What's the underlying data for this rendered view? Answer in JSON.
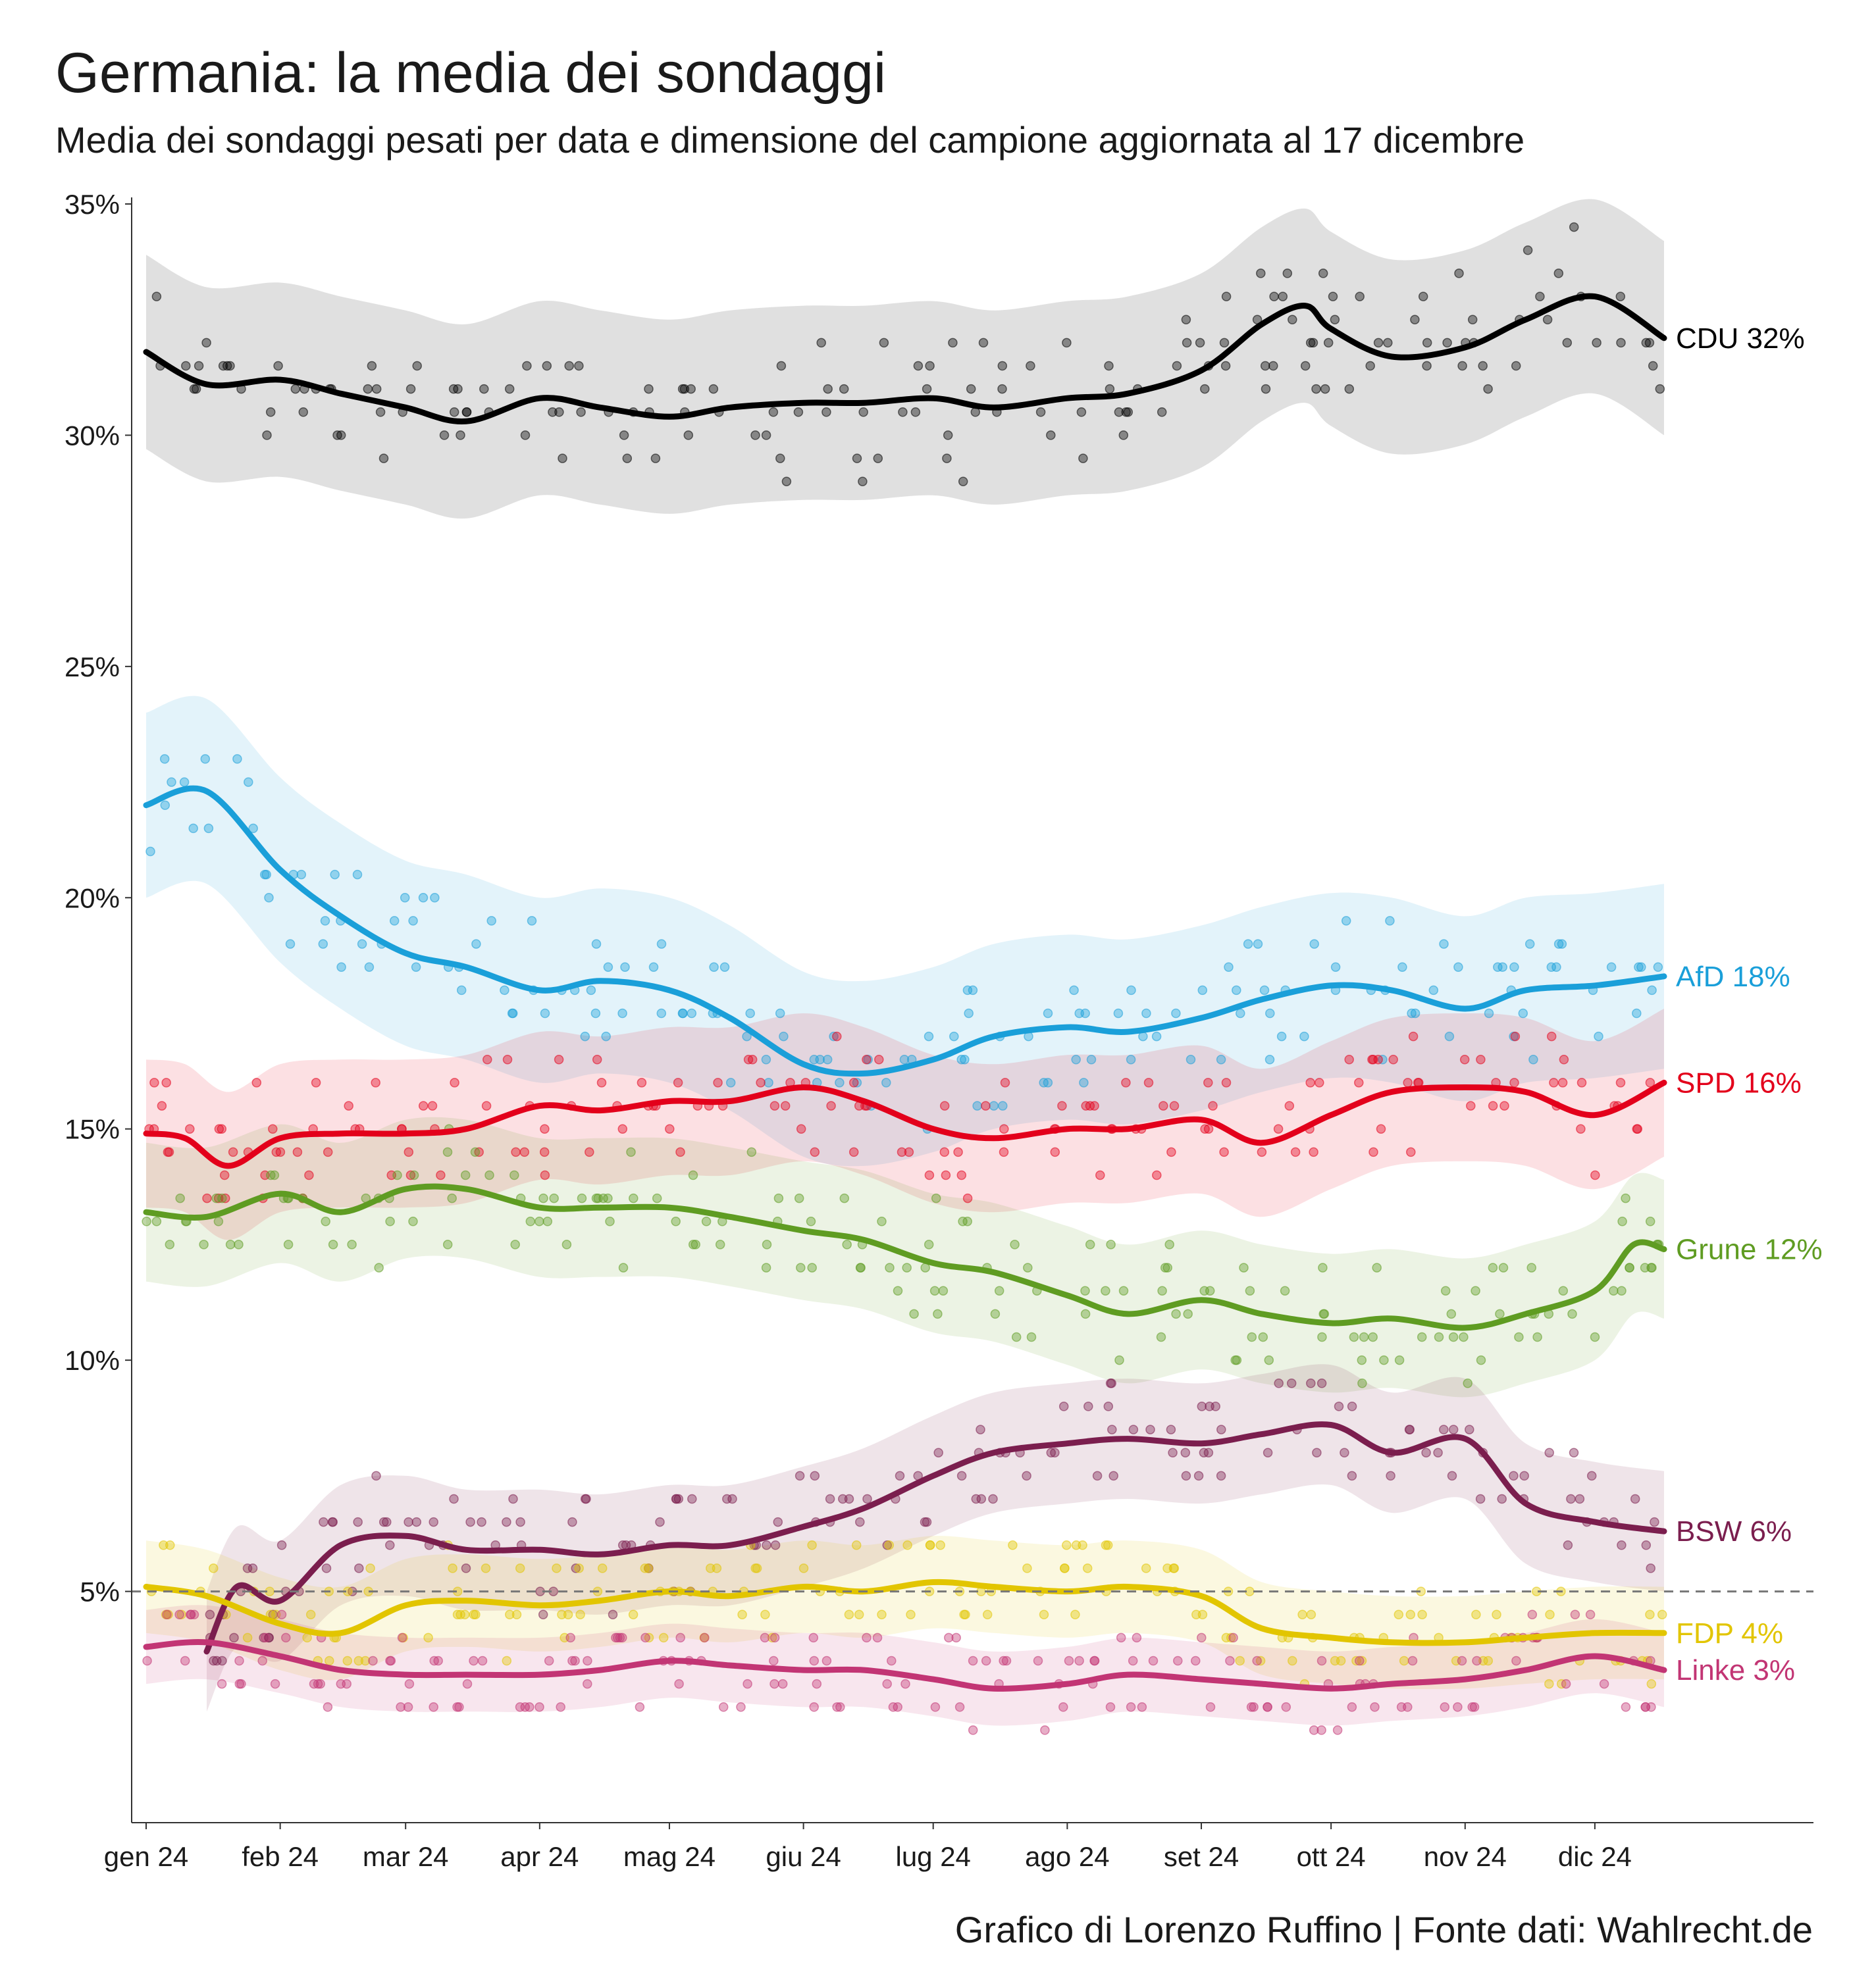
{
  "title": "Germania: la media dei sondaggi",
  "subtitle": "Media dei sondaggi pesati per data e dimensione del campione aggiornata al 17 dicembre",
  "credit": "Grafico di Lorenzo Ruffino | Fonte dati: Wahlrecht.de",
  "chart_data": {
    "type": "line",
    "x_unit": "month",
    "x_range": [
      "2024-01-01",
      "2024-12-31"
    ],
    "ylim": [
      0,
      35
    ],
    "ytick_values": [
      5,
      10,
      15,
      20,
      25,
      30,
      35
    ],
    "ytick_labels": [
      "5%",
      "10%",
      "15%",
      "20%",
      "25%",
      "30%",
      "35%"
    ],
    "xtick_dates": [
      "2024-01-01",
      "2024-02-01",
      "2024-03-01",
      "2024-04-01",
      "2024-05-01",
      "2024-06-01",
      "2024-07-01",
      "2024-08-01",
      "2024-09-01",
      "2024-10-01",
      "2024-11-01",
      "2024-12-01"
    ],
    "xtick_labels": [
      "gen 24",
      "feb 24",
      "mar 24",
      "apr 24",
      "mag 24",
      "giu 24",
      "lug 24",
      "ago 24",
      "set 24",
      "ott 24",
      "nov 24",
      "dic 24"
    ],
    "reference_line": 5,
    "grid": false,
    "series": [
      {
        "name": "CDU",
        "label": "CDU 32%",
        "color": "#000000",
        "band": 2.1,
        "points": [
          [
            "2024-01-01",
            31.8
          ],
          [
            "2024-01-15",
            31.1
          ],
          [
            "2024-02-01",
            31.2
          ],
          [
            "2024-02-15",
            30.9
          ],
          [
            "2024-03-01",
            30.6
          ],
          [
            "2024-03-15",
            30.3
          ],
          [
            "2024-04-01",
            30.8
          ],
          [
            "2024-04-15",
            30.6
          ],
          [
            "2024-05-01",
            30.4
          ],
          [
            "2024-05-15",
            30.6
          ],
          [
            "2024-06-01",
            30.7
          ],
          [
            "2024-06-15",
            30.7
          ],
          [
            "2024-07-01",
            30.8
          ],
          [
            "2024-07-15",
            30.6
          ],
          [
            "2024-08-01",
            30.8
          ],
          [
            "2024-08-15",
            30.9
          ],
          [
            "2024-09-01",
            31.4
          ],
          [
            "2024-09-15",
            32.4
          ],
          [
            "2024-09-25",
            32.8
          ],
          [
            "2024-10-01",
            32.3
          ],
          [
            "2024-10-15",
            31.7
          ],
          [
            "2024-11-01",
            31.9
          ],
          [
            "2024-11-15",
            32.5
          ],
          [
            "2024-12-01",
            33.0
          ],
          [
            "2024-12-17",
            32.1
          ]
        ]
      },
      {
        "name": "AfD",
        "label": "AfD 18%",
        "color": "#1a9fd9",
        "band": 2.0,
        "points": [
          [
            "2024-01-01",
            22.0
          ],
          [
            "2024-01-15",
            22.3
          ],
          [
            "2024-02-01",
            20.6
          ],
          [
            "2024-02-15",
            19.6
          ],
          [
            "2024-03-01",
            18.8
          ],
          [
            "2024-03-15",
            18.5
          ],
          [
            "2024-04-01",
            18.0
          ],
          [
            "2024-04-15",
            18.2
          ],
          [
            "2024-05-01",
            18.0
          ],
          [
            "2024-05-15",
            17.4
          ],
          [
            "2024-06-01",
            16.4
          ],
          [
            "2024-06-15",
            16.2
          ],
          [
            "2024-07-01",
            16.5
          ],
          [
            "2024-07-15",
            17.0
          ],
          [
            "2024-08-01",
            17.2
          ],
          [
            "2024-08-15",
            17.1
          ],
          [
            "2024-09-01",
            17.4
          ],
          [
            "2024-09-15",
            17.8
          ],
          [
            "2024-10-01",
            18.1
          ],
          [
            "2024-10-15",
            18.0
          ],
          [
            "2024-11-01",
            17.6
          ],
          [
            "2024-11-15",
            18.0
          ],
          [
            "2024-12-01",
            18.1
          ],
          [
            "2024-12-17",
            18.3
          ]
        ]
      },
      {
        "name": "SPD",
        "label": "SPD 16%",
        "color": "#e3001b",
        "band": 1.6,
        "points": [
          [
            "2024-01-01",
            14.9
          ],
          [
            "2024-01-10",
            14.8
          ],
          [
            "2024-01-20",
            14.2
          ],
          [
            "2024-02-01",
            14.8
          ],
          [
            "2024-02-15",
            14.9
          ],
          [
            "2024-03-01",
            14.9
          ],
          [
            "2024-03-15",
            15.0
          ],
          [
            "2024-04-01",
            15.5
          ],
          [
            "2024-04-15",
            15.4
          ],
          [
            "2024-05-01",
            15.6
          ],
          [
            "2024-05-15",
            15.6
          ],
          [
            "2024-06-01",
            15.9
          ],
          [
            "2024-06-15",
            15.6
          ],
          [
            "2024-07-01",
            15.0
          ],
          [
            "2024-07-15",
            14.8
          ],
          [
            "2024-08-01",
            15.0
          ],
          [
            "2024-08-15",
            15.0
          ],
          [
            "2024-09-01",
            15.2
          ],
          [
            "2024-09-15",
            14.7
          ],
          [
            "2024-10-01",
            15.3
          ],
          [
            "2024-10-15",
            15.8
          ],
          [
            "2024-11-01",
            15.9
          ],
          [
            "2024-11-15",
            15.8
          ],
          [
            "2024-12-01",
            15.3
          ],
          [
            "2024-12-17",
            16.0
          ]
        ]
      },
      {
        "name": "Grune",
        "label": "Grune 12%",
        "color": "#5f9c22",
        "band": 1.5,
        "points": [
          [
            "2024-01-01",
            13.2
          ],
          [
            "2024-01-15",
            13.1
          ],
          [
            "2024-02-01",
            13.6
          ],
          [
            "2024-02-15",
            13.2
          ],
          [
            "2024-03-01",
            13.7
          ],
          [
            "2024-03-15",
            13.7
          ],
          [
            "2024-04-01",
            13.3
          ],
          [
            "2024-04-15",
            13.3
          ],
          [
            "2024-05-01",
            13.3
          ],
          [
            "2024-05-15",
            13.1
          ],
          [
            "2024-06-01",
            12.8
          ],
          [
            "2024-06-15",
            12.6
          ],
          [
            "2024-07-01",
            12.1
          ],
          [
            "2024-07-15",
            11.9
          ],
          [
            "2024-08-01",
            11.4
          ],
          [
            "2024-08-15",
            11.0
          ],
          [
            "2024-09-01",
            11.3
          ],
          [
            "2024-09-15",
            11.0
          ],
          [
            "2024-10-01",
            10.8
          ],
          [
            "2024-10-15",
            10.9
          ],
          [
            "2024-11-01",
            10.7
          ],
          [
            "2024-11-15",
            11.0
          ],
          [
            "2024-12-01",
            11.5
          ],
          [
            "2024-12-10",
            12.5
          ],
          [
            "2024-12-17",
            12.4
          ]
        ]
      },
      {
        "name": "BSW",
        "label": "BSW 6%",
        "color": "#7b1e4e",
        "band": 1.3,
        "points": [
          [
            "2024-01-15",
            3.7
          ],
          [
            "2024-01-22",
            5.1
          ],
          [
            "2024-02-01",
            4.8
          ],
          [
            "2024-02-15",
            6.0
          ],
          [
            "2024-03-01",
            6.2
          ],
          [
            "2024-03-15",
            5.9
          ],
          [
            "2024-04-01",
            5.9
          ],
          [
            "2024-04-15",
            5.8
          ],
          [
            "2024-05-01",
            6.0
          ],
          [
            "2024-05-15",
            6.0
          ],
          [
            "2024-06-01",
            6.4
          ],
          [
            "2024-06-15",
            6.8
          ],
          [
            "2024-07-01",
            7.5
          ],
          [
            "2024-07-15",
            8.0
          ],
          [
            "2024-08-01",
            8.2
          ],
          [
            "2024-08-15",
            8.3
          ],
          [
            "2024-09-01",
            8.2
          ],
          [
            "2024-09-15",
            8.4
          ],
          [
            "2024-10-01",
            8.6
          ],
          [
            "2024-10-15",
            8.0
          ],
          [
            "2024-11-01",
            8.3
          ],
          [
            "2024-11-15",
            6.9
          ],
          [
            "2024-12-01",
            6.5
          ],
          [
            "2024-12-17",
            6.3
          ]
        ]
      },
      {
        "name": "FDP",
        "label": "FDP 4%",
        "color": "#e2c500",
        "band": 1.0,
        "points": [
          [
            "2024-01-01",
            5.1
          ],
          [
            "2024-01-15",
            4.9
          ],
          [
            "2024-02-01",
            4.3
          ],
          [
            "2024-02-15",
            4.1
          ],
          [
            "2024-03-01",
            4.7
          ],
          [
            "2024-03-15",
            4.8
          ],
          [
            "2024-04-01",
            4.7
          ],
          [
            "2024-04-15",
            4.8
          ],
          [
            "2024-05-01",
            5.0
          ],
          [
            "2024-05-15",
            4.9
          ],
          [
            "2024-06-01",
            5.1
          ],
          [
            "2024-06-15",
            5.0
          ],
          [
            "2024-07-01",
            5.2
          ],
          [
            "2024-07-15",
            5.1
          ],
          [
            "2024-08-01",
            5.0
          ],
          [
            "2024-08-15",
            5.1
          ],
          [
            "2024-09-01",
            4.9
          ],
          [
            "2024-09-15",
            4.2
          ],
          [
            "2024-10-01",
            4.0
          ],
          [
            "2024-10-15",
            3.9
          ],
          [
            "2024-11-01",
            3.9
          ],
          [
            "2024-11-15",
            4.0
          ],
          [
            "2024-12-01",
            4.1
          ],
          [
            "2024-12-17",
            4.1
          ]
        ]
      },
      {
        "name": "Linke",
        "label": "Linke 3%",
        "color": "#c23574",
        "band": 0.8,
        "points": [
          [
            "2024-01-01",
            3.8
          ],
          [
            "2024-01-15",
            3.9
          ],
          [
            "2024-02-01",
            3.6
          ],
          [
            "2024-02-15",
            3.3
          ],
          [
            "2024-03-01",
            3.2
          ],
          [
            "2024-03-15",
            3.2
          ],
          [
            "2024-04-01",
            3.2
          ],
          [
            "2024-04-15",
            3.3
          ],
          [
            "2024-05-01",
            3.5
          ],
          [
            "2024-05-15",
            3.4
          ],
          [
            "2024-06-01",
            3.3
          ],
          [
            "2024-06-15",
            3.3
          ],
          [
            "2024-07-01",
            3.1
          ],
          [
            "2024-07-15",
            2.9
          ],
          [
            "2024-08-01",
            3.0
          ],
          [
            "2024-08-15",
            3.2
          ],
          [
            "2024-09-01",
            3.1
          ],
          [
            "2024-09-15",
            3.0
          ],
          [
            "2024-10-01",
            2.9
          ],
          [
            "2024-10-15",
            3.0
          ],
          [
            "2024-11-01",
            3.1
          ],
          [
            "2024-11-15",
            3.3
          ],
          [
            "2024-12-01",
            3.6
          ],
          [
            "2024-12-17",
            3.3
          ]
        ]
      }
    ]
  }
}
